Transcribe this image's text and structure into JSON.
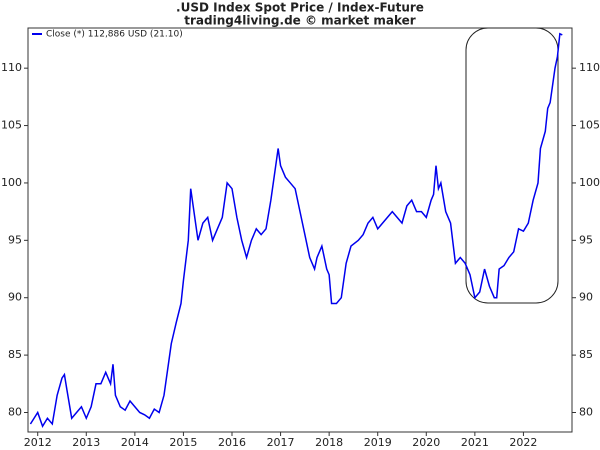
{
  "chart_data": {
    "type": "line",
    "title": ".USD Index Spot Price / Index-Future",
    "subtitle": "trading4living.de © market maker",
    "x": [
      2011.85,
      2012.0,
      2012.1,
      2012.2,
      2012.3,
      2012.4,
      2012.5,
      2012.55,
      2012.6,
      2012.7,
      2012.8,
      2012.9,
      2013.0,
      2013.1,
      2013.2,
      2013.3,
      2013.4,
      2013.5,
      2013.55,
      2013.6,
      2013.7,
      2013.8,
      2013.9,
      2014.0,
      2014.1,
      2014.2,
      2014.3,
      2014.4,
      2014.5,
      2014.6,
      2014.7,
      2014.75,
      2014.85,
      2014.95,
      2015.0,
      2015.1,
      2015.15,
      2015.2,
      2015.3,
      2015.4,
      2015.5,
      2015.6,
      2015.7,
      2015.8,
      2015.9,
      2016.0,
      2016.1,
      2016.2,
      2016.3,
      2016.4,
      2016.5,
      2016.6,
      2016.7,
      2016.8,
      2016.9,
      2016.95,
      2017.0,
      2017.1,
      2017.2,
      2017.3,
      2017.4,
      2017.5,
      2017.6,
      2017.7,
      2017.75,
      2017.85,
      2017.95,
      2018.0,
      2018.05,
      2018.15,
      2018.25,
      2018.35,
      2018.45,
      2018.6,
      2018.7,
      2018.8,
      2018.9,
      2019.0,
      2019.1,
      2019.2,
      2019.3,
      2019.4,
      2019.5,
      2019.6,
      2019.7,
      2019.8,
      2019.9,
      2020.0,
      2020.1,
      2020.15,
      2020.2,
      2020.25,
      2020.3,
      2020.4,
      2020.5,
      2020.6,
      2020.7,
      2020.8,
      2020.9,
      2021.0,
      2021.1,
      2021.2,
      2021.3,
      2021.4,
      2021.45,
      2021.5,
      2021.6,
      2021.7,
      2021.8,
      2021.9,
      2022.0,
      2022.1,
      2022.2,
      2022.3,
      2022.35,
      2022.45,
      2022.5,
      2022.55,
      2022.6,
      2022.65,
      2022.7,
      2022.75,
      2022.8
    ],
    "series": [
      {
        "name": "Close (*) 112,886 USD (21.10)",
        "color": "#0000ee",
        "values": [
          79,
          80,
          78.8,
          79.5,
          79,
          81.5,
          83,
          83.3,
          82,
          79.5,
          80,
          80.5,
          79.5,
          80.5,
          82.5,
          82.5,
          83.5,
          82.5,
          84.2,
          81.5,
          80.5,
          80.2,
          81,
          80.5,
          80,
          79.8,
          79.5,
          80.3,
          80,
          81.5,
          84.5,
          86,
          87.8,
          89.5,
          91.5,
          95,
          99.5,
          98,
          95,
          96.5,
          97,
          95,
          96,
          97,
          100,
          99.5,
          97,
          95,
          93.5,
          95,
          96,
          95.5,
          96,
          98.5,
          101.5,
          103,
          101.5,
          100.5,
          100,
          99.5,
          97.5,
          95.5,
          93.5,
          92.5,
          93.5,
          94.5,
          92.5,
          92,
          89.5,
          89.5,
          90,
          93,
          94.5,
          95,
          95.5,
          96.5,
          97,
          96,
          96.5,
          97,
          97.5,
          97,
          96.5,
          98,
          98.5,
          97.5,
          97.5,
          97,
          98.5,
          99,
          101.5,
          99.5,
          100,
          97.5,
          96.5,
          93,
          93.5,
          93,
          92,
          90,
          90.5,
          92.5,
          91,
          90,
          90,
          92.5,
          92.8,
          93.5,
          94,
          96,
          95.8,
          96.5,
          98.5,
          100,
          103,
          104.5,
          106.5,
          107,
          108.5,
          110,
          111,
          113,
          112.9
        ]
      }
    ],
    "xlim": [
      2011.8,
      2023.0
    ],
    "ylim": [
      78.3,
      113.5
    ],
    "xticks": [
      2012,
      2013,
      2014,
      2015,
      2016,
      2017,
      2018,
      2019,
      2020,
      2021,
      2022
    ],
    "yticks": [
      80,
      85,
      90,
      95,
      100,
      105,
      110
    ],
    "grid": false
  }
}
